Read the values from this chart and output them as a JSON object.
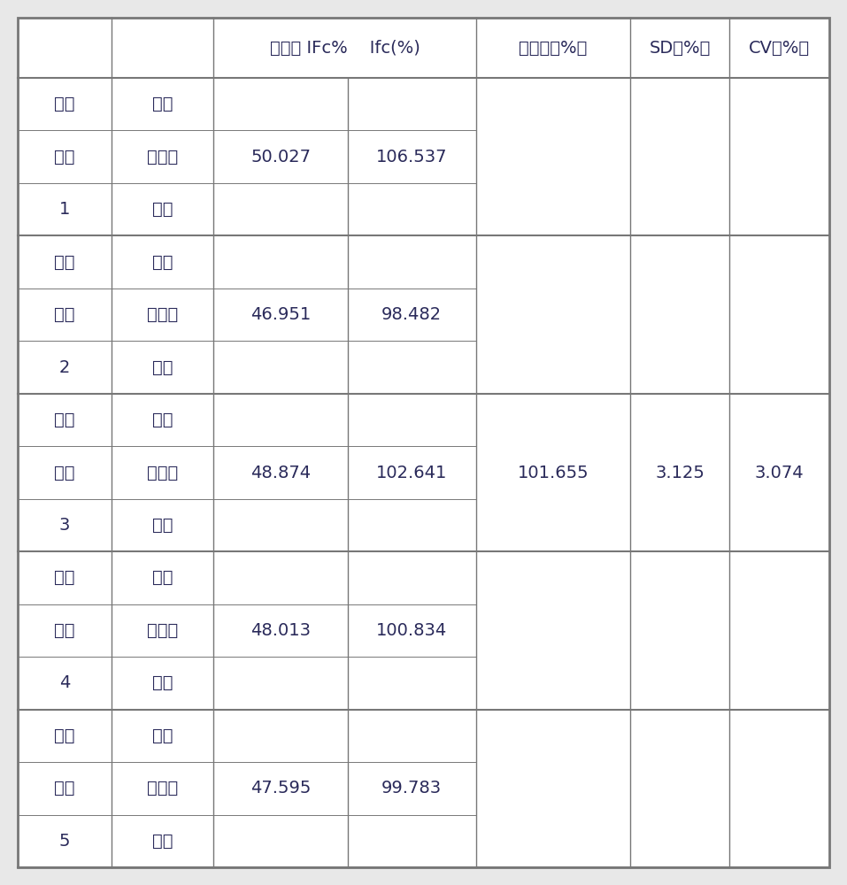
{
  "col3_header": "质控品 IFc%",
  "col4_header": "Ifc(%)",
  "col5_header": "平均値（%）",
  "col6_header": "SD（%）",
  "col7_header": "CV（%）",
  "groups": [
    {
      "label1": "平行",
      "label2": "试验",
      "label3": "1",
      "rows": [
        "空白",
        "标准品",
        "样品"
      ],
      "ifc_pct": "50.027",
      "ifc_val": "106.537",
      "avg": "",
      "sd": "",
      "cv": ""
    },
    {
      "label1": "平行",
      "label2": "试验",
      "label3": "2",
      "rows": [
        "空白",
        "标准品",
        "样品"
      ],
      "ifc_pct": "46.951",
      "ifc_val": "98.482",
      "avg": "",
      "sd": "",
      "cv": ""
    },
    {
      "label1": "平行",
      "label2": "试验",
      "label3": "3",
      "rows": [
        "空白",
        "标准品",
        "样品"
      ],
      "ifc_pct": "48.874",
      "ifc_val": "102.641",
      "avg": "101.655",
      "sd": "3.125",
      "cv": "3.074"
    },
    {
      "label1": "平行",
      "label2": "试验",
      "label3": "4",
      "rows": [
        "空白",
        "标准品",
        "样品"
      ],
      "ifc_pct": "48.013",
      "ifc_val": "100.834",
      "avg": "",
      "sd": "",
      "cv": ""
    },
    {
      "label1": "平行",
      "label2": "试验",
      "label3": "5",
      "rows": [
        "空白",
        "标准品",
        "样品"
      ],
      "ifc_pct": "47.595",
      "ifc_val": "99.783",
      "avg": "",
      "sd": "",
      "cv": ""
    }
  ],
  "bg_color": "#e8e8e8",
  "table_bg": "#ffffff",
  "text_color": "#2a2a5a",
  "border_color": "#777777",
  "header_fontsize": 14,
  "cell_fontsize": 14
}
